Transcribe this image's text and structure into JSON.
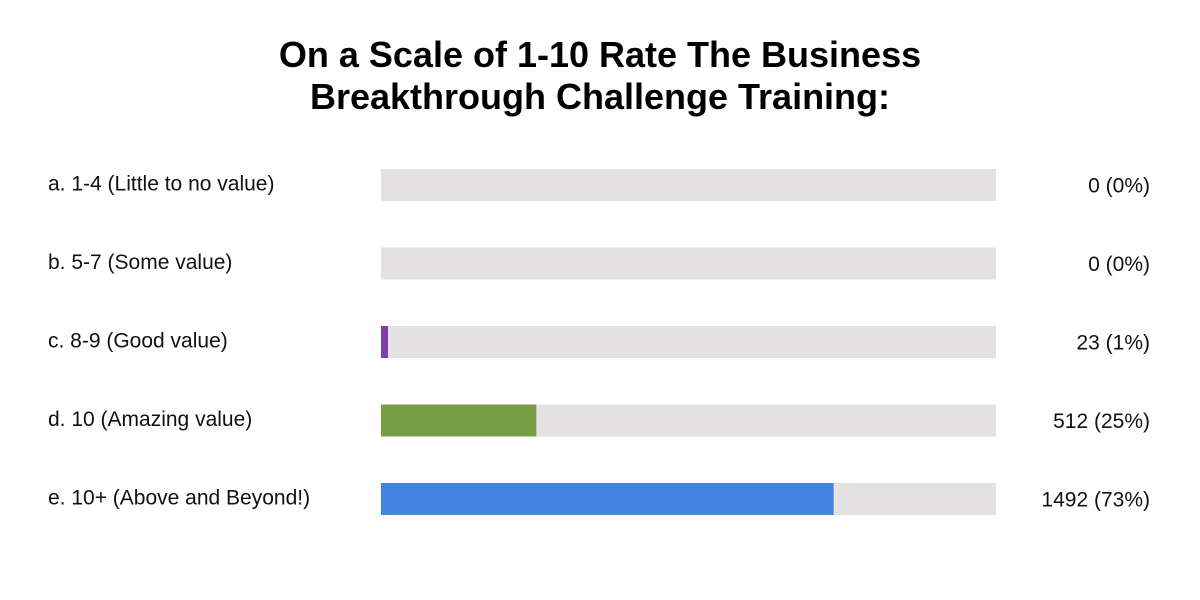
{
  "chart_data": {
    "type": "bar",
    "orientation": "horizontal",
    "title": "On a Scale of 1-10 Rate The Business Breakthrough Challenge Training:",
    "categories": [
      "a. 1-4 (Little to no value)",
      "b. 5-7 (Some value)",
      "c. 8-9 (Good value)",
      "d. 10 (Amazing value)",
      "e. 10+ (Above and Beyond!)"
    ],
    "values": [
      0,
      0,
      23,
      512,
      1492
    ],
    "value_labels": [
      "0 (0%)",
      "0 (0%)",
      "23 (1%)",
      "512 (25%)",
      "1492 (73%)"
    ],
    "colors": [
      null,
      null,
      "#7b3fa6",
      "#789e45",
      "#4285e0"
    ],
    "track_color": "#e3e1e2",
    "xlim": [
      0,
      2027
    ]
  }
}
